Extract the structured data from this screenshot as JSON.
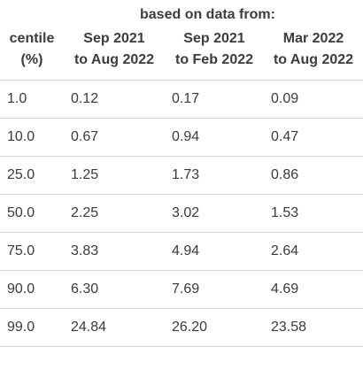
{
  "header": {
    "cut_line": "…  … ( ) …",
    "based_on": "based on data from:",
    "columns": [
      {
        "line1": "centile",
        "line2": "(%)"
      },
      {
        "line1": "Sep 2021",
        "line2": "to Aug 2022"
      },
      {
        "line1": "Sep 2021",
        "line2": "to Feb 2022"
      },
      {
        "line1": "Mar 2022",
        "line2": "to Aug 2022"
      }
    ]
  },
  "rows": [
    {
      "centile": "1.0",
      "v1": "0.12",
      "v2": "0.17",
      "v3": "0.09"
    },
    {
      "centile": "10.0",
      "v1": "0.67",
      "v2": "0.94",
      "v3": "0.47"
    },
    {
      "centile": "25.0",
      "v1": "1.25",
      "v2": "1.73",
      "v3": "0.86"
    },
    {
      "centile": "50.0",
      "v1": "2.25",
      "v2": "3.02",
      "v3": "1.53"
    },
    {
      "centile": "75.0",
      "v1": "3.83",
      "v2": "4.94",
      "v3": "2.64"
    },
    {
      "centile": "90.0",
      "v1": "6.30",
      "v2": "7.69",
      "v3": "4.69"
    },
    {
      "centile": "99.0",
      "v1": "24.84",
      "v2": "26.20",
      "v3": "23.58"
    }
  ]
}
